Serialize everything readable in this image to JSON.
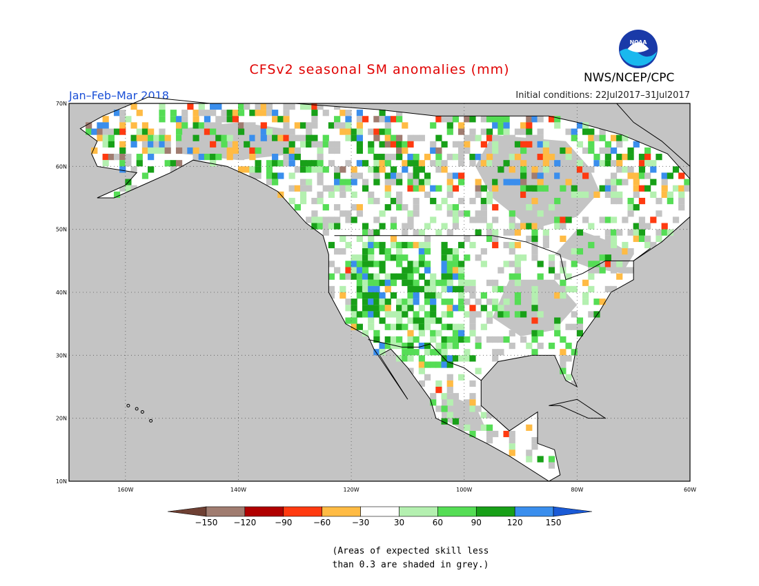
{
  "title": "CFSv2 seasonal SM anomalies (mm)",
  "season": "Jan–Feb–Mar 2018",
  "initial_conditions": "Initial conditions: 22Jul2017–31Jul2017",
  "agency": "NWS/NCEP/CPC",
  "logo_text": "NOAA",
  "lat_labels": [
    "70N",
    "60N",
    "50N",
    "40N",
    "30N",
    "20N",
    "10N"
  ],
  "lon_labels": [
    "160W",
    "140W",
    "120W",
    "100W",
    "80W",
    "60W"
  ],
  "colorbar": {
    "ticks": [
      "−150",
      "−120",
      "−90",
      "−60",
      "−30",
      "30",
      "60",
      "90",
      "120",
      "150"
    ],
    "colors": [
      "#6e4033",
      "#a07c70",
      "#b00000",
      "#ff3a10",
      "#ffbb44",
      "#ffffff",
      "#b4f0b0",
      "#55dd55",
      "#18a018",
      "#3a8eed",
      "#1a5ad6"
    ]
  },
  "note_line1": "(Areas of expected skill less",
  "note_line2": "than 0.3 are shaded in grey.)",
  "colors": {
    "grey": "#c4c4c4",
    "title": "#e00000",
    "season": "#1a4fd6"
  }
}
